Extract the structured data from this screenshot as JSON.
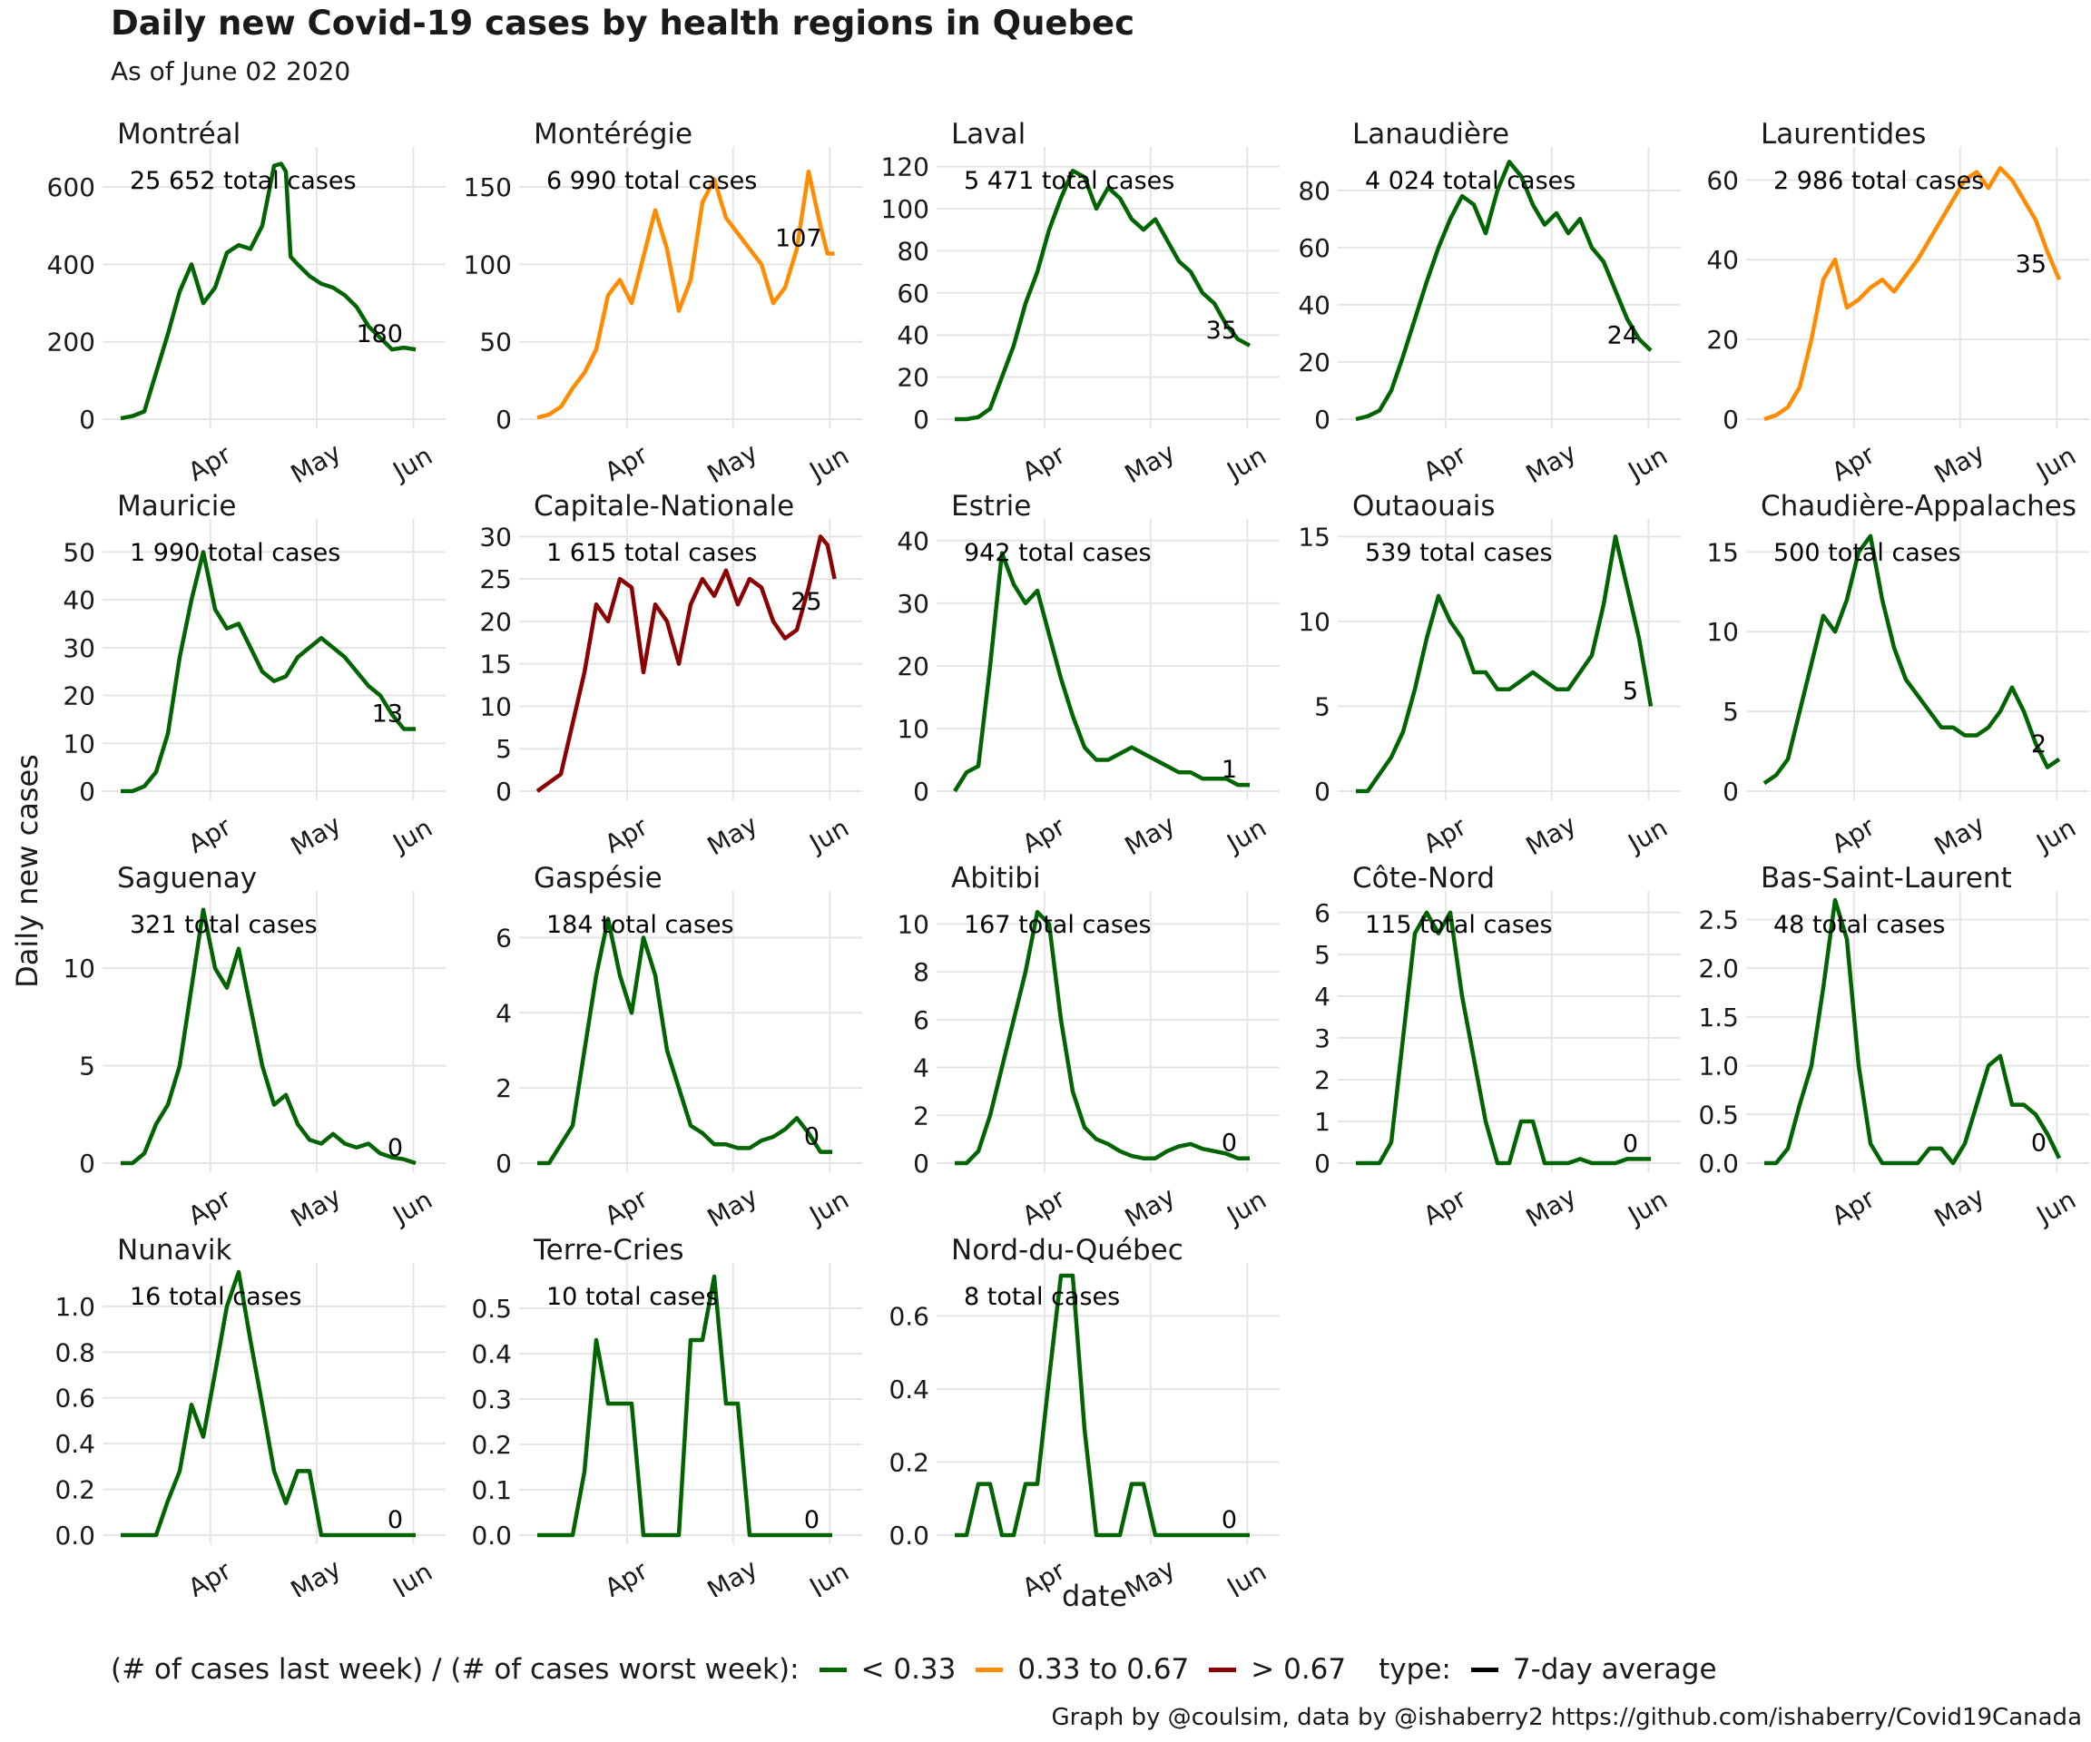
{
  "title": "Daily new Covid-19 cases by health regions in Quebec",
  "subtitle": "As of June 02 2020",
  "xlabel": "date",
  "ylabel": "Daily new cases",
  "caption": "Graph by @coulsim, data by @ishaberry2 https://github.com/ishaberry/Covid19Canada",
  "legend": {
    "ratio_title": "(# of cases last week) / (# of cases worst week):",
    "ratio_items": [
      {
        "label": "< 0.33",
        "color": "#006400"
      },
      {
        "label": "0.33 to 0.67",
        "color": "#FF8C00"
      },
      {
        "label": "> 0.67",
        "color": "#8B0000"
      }
    ],
    "type_title": "type:",
    "type_items": [
      {
        "label": "7-day average",
        "color": "#000000"
      }
    ]
  },
  "chart_data": [
    {
      "type": "line",
      "title": "Montréal",
      "total_label": "25 652 total cases",
      "end_label": "180",
      "color": "#006400",
      "x_ticks": [
        "Apr",
        "May",
        "Jun"
      ],
      "y_ticks": [
        0,
        200,
        400,
        600
      ],
      "ylim": [
        0,
        680
      ],
      "x": [
        0,
        5,
        10,
        15,
        20,
        25,
        30,
        35,
        40,
        45,
        50,
        55,
        60,
        65,
        68,
        70,
        72,
        75,
        80,
        85,
        90,
        95,
        100,
        105,
        110,
        115,
        120,
        125
      ],
      "values": [
        2,
        8,
        20,
        120,
        220,
        330,
        400,
        300,
        340,
        430,
        450,
        440,
        500,
        655,
        660,
        640,
        420,
        400,
        370,
        350,
        340,
        320,
        290,
        240,
        210,
        180,
        185,
        180
      ]
    },
    {
      "type": "line",
      "title": "Montérégie",
      "total_label": "6 990 total cases",
      "end_label": "107",
      "color": "#FF8C00",
      "x_ticks": [
        "Apr",
        "May",
        "Jun"
      ],
      "y_ticks": [
        0,
        50,
        100,
        150
      ],
      "ylim": [
        0,
        170
      ],
      "x": [
        0,
        5,
        10,
        15,
        20,
        25,
        30,
        35,
        40,
        45,
        50,
        55,
        60,
        65,
        70,
        75,
        80,
        85,
        90,
        95,
        100,
        105,
        110,
        115,
        120,
        123,
        126
      ],
      "values": [
        1,
        3,
        8,
        20,
        30,
        45,
        80,
        90,
        75,
        105,
        135,
        110,
        70,
        90,
        140,
        155,
        130,
        120,
        110,
        100,
        75,
        85,
        110,
        160,
        125,
        107,
        107
      ]
    },
    {
      "type": "line",
      "title": "Laval",
      "total_label": "5 471 total cases",
      "end_label": "35",
      "color": "#006400",
      "x_ticks": [
        "Apr",
        "May",
        "Jun"
      ],
      "y_ticks": [
        0,
        20,
        40,
        60,
        80,
        100,
        120
      ],
      "ylim": [
        0,
        125
      ],
      "x": [
        0,
        5,
        10,
        15,
        20,
        25,
        30,
        35,
        40,
        45,
        50,
        55,
        60,
        65,
        70,
        75,
        80,
        85,
        90,
        95,
        100,
        105,
        110,
        115,
        120,
        125
      ],
      "values": [
        0,
        0,
        1,
        5,
        20,
        35,
        55,
        70,
        90,
        105,
        118,
        115,
        100,
        110,
        105,
        95,
        90,
        95,
        85,
        75,
        70,
        60,
        55,
        45,
        38,
        35
      ]
    },
    {
      "type": "line",
      "title": "Lanaudière",
      "total_label": "4 024 total cases",
      "end_label": "24",
      "color": "#006400",
      "x_ticks": [
        "Apr",
        "May",
        "Jun"
      ],
      "y_ticks": [
        0,
        20,
        40,
        60,
        80
      ],
      "ylim": [
        0,
        92
      ],
      "x": [
        0,
        5,
        10,
        15,
        20,
        25,
        30,
        35,
        40,
        45,
        50,
        55,
        60,
        65,
        70,
        75,
        80,
        85,
        90,
        95,
        100,
        105,
        110,
        115,
        120,
        125
      ],
      "values": [
        0,
        1,
        3,
        10,
        22,
        35,
        48,
        60,
        70,
        78,
        75,
        65,
        80,
        90,
        85,
        75,
        68,
        72,
        65,
        70,
        60,
        55,
        45,
        35,
        28,
        24
      ]
    },
    {
      "type": "line",
      "title": "Laurentides",
      "total_label": "2 986 total cases",
      "end_label": "35",
      "color": "#FF8C00",
      "x_ticks": [
        "Apr",
        "May",
        "Jun"
      ],
      "y_ticks": [
        0,
        20,
        40,
        60
      ],
      "ylim": [
        0,
        66
      ],
      "x": [
        0,
        5,
        10,
        15,
        20,
        25,
        30,
        35,
        40,
        45,
        50,
        55,
        60,
        65,
        70,
        75,
        80,
        85,
        90,
        95,
        100,
        105,
        110,
        115,
        120,
        125
      ],
      "values": [
        0,
        1,
        3,
        8,
        20,
        35,
        40,
        28,
        30,
        33,
        35,
        32,
        36,
        40,
        45,
        50,
        55,
        60,
        62,
        58,
        63,
        60,
        55,
        50,
        42,
        35
      ]
    },
    {
      "type": "line",
      "title": "Mauricie",
      "total_label": "1 990 total cases",
      "end_label": "13",
      "color": "#006400",
      "x_ticks": [
        "Apr",
        "May",
        "Jun"
      ],
      "y_ticks": [
        0,
        10,
        20,
        30,
        40,
        50
      ],
      "ylim": [
        0,
        55
      ],
      "x": [
        0,
        5,
        10,
        15,
        20,
        25,
        30,
        35,
        40,
        45,
        50,
        55,
        60,
        65,
        70,
        75,
        80,
        85,
        90,
        95,
        100,
        105,
        110,
        115,
        120,
        125
      ],
      "values": [
        0,
        0,
        1,
        4,
        12,
        28,
        40,
        50,
        38,
        34,
        35,
        30,
        25,
        23,
        24,
        28,
        30,
        32,
        30,
        28,
        25,
        22,
        20,
        16,
        13,
        13
      ]
    },
    {
      "type": "line",
      "title": "Capitale-Nationale",
      "total_label": "1 615 total cases",
      "end_label": "25",
      "color": "#8B0000",
      "x_ticks": [
        "Apr",
        "May",
        "Jun"
      ],
      "y_ticks": [
        0,
        5,
        10,
        15,
        20,
        25,
        30
      ],
      "ylim": [
        0,
        31
      ],
      "x": [
        0,
        5,
        10,
        15,
        20,
        25,
        30,
        35,
        40,
        45,
        50,
        55,
        60,
        65,
        70,
        75,
        80,
        85,
        90,
        95,
        100,
        105,
        110,
        115,
        120,
        123,
        126
      ],
      "values": [
        0,
        1,
        2,
        8,
        14,
        22,
        20,
        25,
        24,
        14,
        22,
        20,
        15,
        22,
        25,
        23,
        26,
        22,
        25,
        24,
        20,
        18,
        19,
        24,
        30,
        29,
        25
      ]
    },
    {
      "type": "line",
      "title": "Estrie",
      "total_label": "942 total cases",
      "end_label": "1",
      "color": "#006400",
      "x_ticks": [
        "Apr",
        "May",
        "Jun"
      ],
      "y_ticks": [
        0,
        10,
        20,
        30,
        40
      ],
      "ylim": [
        0,
        42
      ],
      "x": [
        0,
        5,
        10,
        15,
        20,
        25,
        30,
        35,
        40,
        45,
        50,
        55,
        60,
        65,
        70,
        75,
        80,
        85,
        90,
        95,
        100,
        105,
        110,
        115,
        120,
        125
      ],
      "values": [
        0,
        3,
        4,
        20,
        38,
        33,
        30,
        32,
        25,
        18,
        12,
        7,
        5,
        5,
        6,
        7,
        6,
        5,
        4,
        3,
        3,
        2,
        2,
        2,
        1,
        1
      ]
    },
    {
      "type": "line",
      "title": "Outaouais",
      "total_label": "539 total cases",
      "end_label": "5",
      "color": "#006400",
      "x_ticks": [
        "Apr",
        "May",
        "Jun"
      ],
      "y_ticks": [
        0,
        5,
        10,
        15
      ],
      "ylim": [
        0,
        15.5
      ],
      "x": [
        0,
        5,
        10,
        15,
        20,
        25,
        30,
        35,
        40,
        45,
        50,
        55,
        60,
        65,
        70,
        75,
        80,
        85,
        90,
        95,
        100,
        105,
        110,
        115,
        120,
        125
      ],
      "values": [
        0,
        0,
        1,
        2,
        3.5,
        6,
        9,
        11.5,
        10,
        9,
        7,
        7,
        6,
        6,
        6.5,
        7,
        6.5,
        6,
        6,
        7,
        8,
        11,
        15,
        12,
        9,
        5
      ]
    },
    {
      "type": "line",
      "title": "Chaudière-Appalaches",
      "total_label": "500 total cases",
      "end_label": "2",
      "color": "#006400",
      "x_ticks": [
        "Apr",
        "May",
        "Jun"
      ],
      "y_ticks": [
        0,
        5,
        10,
        15
      ],
      "ylim": [
        0,
        16.5
      ],
      "x": [
        0,
        5,
        10,
        15,
        20,
        25,
        30,
        35,
        40,
        45,
        50,
        55,
        60,
        65,
        70,
        75,
        80,
        85,
        90,
        95,
        100,
        105,
        110,
        115,
        120,
        125
      ],
      "values": [
        0.5,
        1,
        2,
        5,
        8,
        11,
        10,
        12,
        15,
        16,
        12,
        9,
        7,
        6,
        5,
        4,
        4,
        3.5,
        3.5,
        4,
        5,
        6.5,
        5,
        3,
        1.5,
        2
      ]
    },
    {
      "type": "line",
      "title": "Saguenay",
      "total_label": "321 total cases",
      "end_label": "0",
      "color": "#006400",
      "x_ticks": [
        "Apr",
        "May",
        "Jun"
      ],
      "y_ticks": [
        0,
        5,
        10
      ],
      "ylim": [
        0,
        13.5
      ],
      "x": [
        0,
        5,
        10,
        15,
        20,
        25,
        30,
        35,
        40,
        45,
        50,
        55,
        60,
        65,
        70,
        75,
        80,
        85,
        90,
        95,
        100,
        105,
        110,
        115,
        120,
        125
      ],
      "values": [
        0,
        0,
        0.5,
        2,
        3,
        5,
        9,
        13,
        10,
        9,
        11,
        8,
        5,
        3,
        3.5,
        2,
        1.2,
        1,
        1.5,
        1,
        0.8,
        1,
        0.5,
        0.3,
        0.2,
        0
      ]
    },
    {
      "type": "line",
      "title": "Gaspésie",
      "total_label": "184 total cases",
      "end_label": "0",
      "color": "#006400",
      "x_ticks": [
        "Apr",
        "May",
        "Jun"
      ],
      "y_ticks": [
        0,
        2,
        4,
        6
      ],
      "ylim": [
        0,
        7
      ],
      "x": [
        0,
        5,
        10,
        15,
        20,
        25,
        30,
        35,
        40,
        45,
        50,
        55,
        60,
        65,
        70,
        75,
        80,
        85,
        90,
        95,
        100,
        105,
        110,
        115,
        120,
        125
      ],
      "values": [
        0,
        0,
        0.5,
        1,
        3,
        5,
        6.5,
        5,
        4,
        6,
        5,
        3,
        2,
        1,
        0.8,
        0.5,
        0.5,
        0.4,
        0.4,
        0.6,
        0.7,
        0.9,
        1.2,
        0.8,
        0.3,
        0.3
      ]
    },
    {
      "type": "line",
      "title": "Abitibi",
      "total_label": "167 total cases",
      "end_label": "0",
      "color": "#006400",
      "x_ticks": [
        "Apr",
        "May",
        "Jun"
      ],
      "y_ticks": [
        0,
        2,
        4,
        6,
        8,
        10
      ],
      "ylim": [
        0,
        11
      ],
      "x": [
        0,
        5,
        10,
        15,
        20,
        25,
        30,
        35,
        40,
        45,
        50,
        55,
        60,
        65,
        70,
        75,
        80,
        85,
        90,
        95,
        100,
        105,
        110,
        115,
        120,
        125
      ],
      "values": [
        0,
        0,
        0.5,
        2,
        4,
        6,
        8,
        10.5,
        10,
        6,
        3,
        1.5,
        1,
        0.8,
        0.5,
        0.3,
        0.2,
        0.2,
        0.5,
        0.7,
        0.8,
        0.6,
        0.5,
        0.4,
        0.2,
        0.2
      ]
    },
    {
      "type": "line",
      "title": "Côte-Nord",
      "total_label": "115 total cases",
      "end_label": "0",
      "color": "#006400",
      "x_ticks": [
        "Apr",
        "May",
        "Jun"
      ],
      "y_ticks": [
        0,
        1,
        2,
        3,
        4,
        5,
        6
      ],
      "ylim": [
        0,
        6.3
      ],
      "x": [
        0,
        5,
        10,
        15,
        20,
        25,
        30,
        35,
        40,
        45,
        50,
        55,
        60,
        65,
        70,
        75,
        80,
        85,
        90,
        95,
        100,
        105,
        110,
        115,
        120,
        125
      ],
      "values": [
        0,
        0,
        0,
        0.5,
        3,
        5.5,
        6,
        5.5,
        6,
        4,
        2.5,
        1,
        0,
        0,
        1,
        1,
        0,
        0,
        0,
        0.1,
        0,
        0,
        0,
        0.1,
        0.1,
        0.1
      ]
    },
    {
      "type": "line",
      "title": "Bas-Saint-Laurent",
      "total_label": "48 total cases",
      "end_label": "0",
      "color": "#006400",
      "x_ticks": [
        "Apr",
        "May",
        "Jun"
      ],
      "y_ticks": [
        "0.0",
        "0.5",
        "1.0",
        "1.5",
        "2.0",
        "2.5"
      ],
      "ylim": [
        0,
        2.7
      ],
      "x": [
        0,
        5,
        10,
        15,
        20,
        25,
        30,
        35,
        40,
        45,
        50,
        55,
        60,
        65,
        70,
        75,
        80,
        85,
        90,
        95,
        100,
        105,
        110,
        115,
        120,
        125
      ],
      "values": [
        0,
        0,
        0.15,
        0.6,
        1,
        1.8,
        2.7,
        2.3,
        1,
        0.2,
        0,
        0,
        0,
        0,
        0.15,
        0.15,
        0,
        0.2,
        0.6,
        1,
        1.1,
        0.6,
        0.6,
        0.5,
        0.3,
        0.05
      ]
    },
    {
      "type": "line",
      "title": "Nunavik",
      "total_label": "16 total cases",
      "end_label": "0",
      "color": "#006400",
      "x_ticks": [
        "Apr",
        "May",
        "Jun"
      ],
      "y_ticks": [
        "0.0",
        "0.2",
        "0.4",
        "0.6",
        "0.8",
        "1.0"
      ],
      "ylim": [
        0,
        1.15
      ],
      "x": [
        0,
        5,
        10,
        15,
        20,
        25,
        30,
        35,
        40,
        45,
        50,
        55,
        60,
        65,
        70,
        75,
        80,
        85,
        90,
        95,
        100,
        105,
        110,
        115,
        120,
        125
      ],
      "values": [
        0,
        0,
        0,
        0,
        0.15,
        0.28,
        0.57,
        0.43,
        0.71,
        1.0,
        1.15,
        0.85,
        0.57,
        0.28,
        0.14,
        0.28,
        0.28,
        0,
        0,
        0,
        0,
        0,
        0,
        0,
        0,
        0
      ]
    },
    {
      "type": "line",
      "title": "Terre-Cries",
      "total_label": "10 total cases",
      "end_label": "0",
      "color": "#006400",
      "x_ticks": [
        "Apr",
        "May",
        "Jun"
      ],
      "y_ticks": [
        "0.0",
        "0.1",
        "0.2",
        "0.3",
        "0.4",
        "0.5"
      ],
      "ylim": [
        0,
        0.58
      ],
      "x": [
        0,
        5,
        10,
        15,
        20,
        25,
        30,
        35,
        40,
        45,
        50,
        55,
        60,
        65,
        70,
        75,
        80,
        85,
        90,
        95,
        100,
        105,
        110,
        115,
        120,
        125
      ],
      "values": [
        0,
        0,
        0,
        0,
        0.14,
        0.43,
        0.29,
        0.29,
        0.29,
        0,
        0,
        0,
        0,
        0.43,
        0.43,
        0.57,
        0.29,
        0.29,
        0,
        0,
        0,
        0,
        0,
        0,
        0,
        0
      ]
    },
    {
      "type": "line",
      "title": "Nord-du-Québec",
      "total_label": "8 total cases",
      "end_label": "0",
      "color": "#006400",
      "x_ticks": [
        "Apr",
        "May",
        "Jun"
      ],
      "y_ticks": [
        "0.0",
        "0.2",
        "0.4",
        "0.6"
      ],
      "ylim": [
        0,
        0.72
      ],
      "x": [
        0,
        5,
        10,
        15,
        20,
        25,
        30,
        35,
        40,
        45,
        50,
        55,
        60,
        65,
        70,
        75,
        80,
        85,
        90,
        95,
        100,
        105,
        110,
        115,
        120,
        125
      ],
      "values": [
        0,
        0,
        0.14,
        0.14,
        0,
        0,
        0.14,
        0.14,
        0.43,
        0.71,
        0.71,
        0.29,
        0,
        0,
        0,
        0.14,
        0.14,
        0,
        0,
        0,
        0,
        0,
        0,
        0,
        0,
        0
      ]
    }
  ]
}
